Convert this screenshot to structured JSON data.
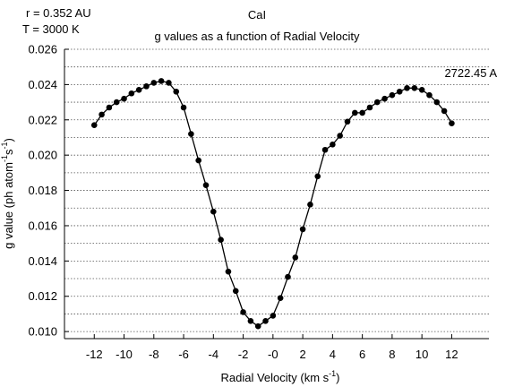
{
  "chart_data": {
    "type": "line",
    "header_lines": [
      "r = 0.352 AU",
      "T = 3000 K"
    ],
    "species": "CaI",
    "title": "g values as a function of Radial Velocity",
    "annotation": "2722.45 A",
    "xlabel": "Radial Velocity (km s",
    "xlabel_sup": "-1",
    "xlabel_end": ")",
    "ylabel": "g value (ph atom",
    "ylabel_sup1": "-1",
    "ylabel_mid": "s",
    "ylabel_sup2": "-1",
    "ylabel_end": ")",
    "xlim": [
      -14,
      14.5
    ],
    "ylim": [
      0.0096,
      0.026
    ],
    "x_ticks": [
      {
        "value": -12,
        "label": "-12"
      },
      {
        "value": -10,
        "label": "-10"
      },
      {
        "value": -8,
        "label": "-8"
      },
      {
        "value": -6,
        "label": "-6"
      },
      {
        "value": -4,
        "label": "-4"
      },
      {
        "value": -2,
        "label": "-2"
      },
      {
        "value": 0,
        "label": "-0"
      },
      {
        "value": 2,
        "label": "2"
      },
      {
        "value": 4,
        "label": "4"
      },
      {
        "value": 6,
        "label": "6"
      },
      {
        "value": 8,
        "label": "8"
      },
      {
        "value": 10,
        "label": "10"
      },
      {
        "value": 12,
        "label": "12"
      }
    ],
    "y_ticks": [
      {
        "value": 0.01,
        "label": "0.010"
      },
      {
        "value": 0.012,
        "label": "0.012"
      },
      {
        "value": 0.014,
        "label": "0.014"
      },
      {
        "value": 0.016,
        "label": "0.016"
      },
      {
        "value": 0.018,
        "label": "0.018"
      },
      {
        "value": 0.02,
        "label": "0.020"
      },
      {
        "value": 0.022,
        "label": "0.022"
      },
      {
        "value": 0.024,
        "label": "0.024"
      },
      {
        "value": 0.026,
        "label": "0.026"
      }
    ],
    "grid": "horizontal dotted",
    "series": [
      {
        "x": [
          -12,
          -11.5,
          -11,
          -10.5,
          -10,
          -9.5,
          -9,
          -8.5,
          -8,
          -7.5,
          -7,
          -6.5,
          -6,
          -5.5,
          -5,
          -4.5,
          -4,
          -3.5,
          -3,
          -2.5,
          -2,
          -1.5,
          -1,
          -0.5,
          0,
          0.5,
          1,
          1.5,
          2,
          2.5,
          3,
          3.5,
          4,
          4.5,
          5,
          5.5,
          6,
          6.5,
          7,
          7.5,
          8,
          8.5,
          9,
          9.5,
          10,
          10.5,
          11,
          11.5,
          12
        ],
        "y": [
          0.0217,
          0.0223,
          0.0227,
          0.023,
          0.0232,
          0.0235,
          0.0237,
          0.0239,
          0.0241,
          0.0242,
          0.0241,
          0.0236,
          0.0227,
          0.0212,
          0.0197,
          0.0183,
          0.0168,
          0.0152,
          0.0134,
          0.0123,
          0.0111,
          0.0106,
          0.0103,
          0.0106,
          0.0109,
          0.0119,
          0.0131,
          0.0142,
          0.0158,
          0.0172,
          0.0188,
          0.0203,
          0.0206,
          0.0211,
          0.0219,
          0.0224,
          0.0224,
          0.0227,
          0.023,
          0.0232,
          0.0234,
          0.0236,
          0.0238,
          0.0238,
          0.0237,
          0.0234,
          0.023,
          0.0225,
          0.0218
        ]
      }
    ]
  }
}
